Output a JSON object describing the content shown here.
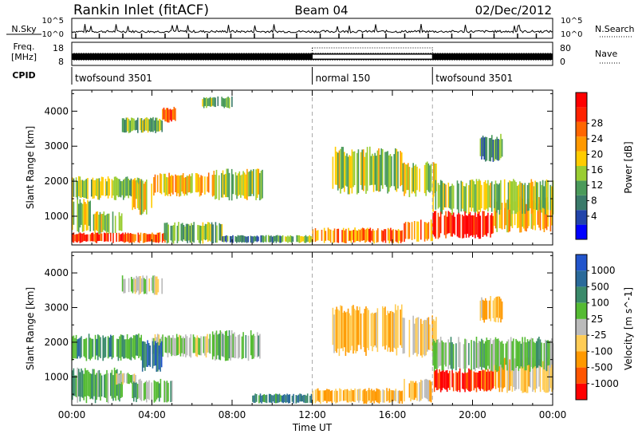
{
  "header": {
    "station": "Rankin Inlet (fitACF)",
    "beam": "Beam 04",
    "date": "02/Dec/2012"
  },
  "top_panels": {
    "nsky_label": "N.Sky",
    "nsky_ticks": [
      "10^5",
      "10^0"
    ],
    "nsearch_label": "N.Search",
    "nsearch_ticks": [
      "10^5",
      "10^0"
    ],
    "freq_label_1": "Freq.",
    "freq_label_2": "[MHz]",
    "freq_ticks": [
      "18",
      "8"
    ],
    "nave_label": "Nave",
    "nave_ticks": [
      "80",
      "0"
    ],
    "cpid_label": "CPID",
    "cpid_segments": [
      {
        "label": "twofsound 3501",
        "start_hour": 0,
        "end_hour": 12
      },
      {
        "label": "normal 150",
        "start_hour": 12,
        "end_hour": 18
      },
      {
        "label": "twofsound 3501",
        "start_hour": 18,
        "end_hour": 24
      }
    ]
  },
  "chart_data": [
    {
      "type": "heatmap",
      "title": "",
      "xlabel": "Time UT",
      "ylabel": "Slant Range [km]",
      "x_ticks": [
        "00:00",
        "04:00",
        "08:00",
        "12:00",
        "16:00",
        "20:00",
        "00:00"
      ],
      "xlim_hours": [
        0,
        24
      ],
      "y_ticks": [
        1000,
        2000,
        3000,
        4000
      ],
      "ylim": [
        180,
        4600
      ],
      "colorbar_label": "Power [dB]",
      "colorbar_ticks": [
        "4",
        "8",
        "12",
        "16",
        "20",
        "24",
        "28"
      ],
      "colorbar_colors": [
        "#0000ff",
        "#2244aa",
        "#3a7a6a",
        "#4a9a5a",
        "#9acd32",
        "#ffcc00",
        "#ff9900",
        "#ff6600",
        "#ff2200",
        "#ff0000"
      ],
      "blobs": [
        {
          "t": [
            0,
            2.2
          ],
          "r": [
            250,
            520
          ],
          "v": 26
        },
        {
          "t": [
            2.2,
            4.8
          ],
          "r": [
            250,
            520
          ],
          "v": 24
        },
        {
          "t": [
            0,
            1.0
          ],
          "r": [
            600,
            1500
          ],
          "v": 14
        },
        {
          "t": [
            0,
            3.5
          ],
          "r": [
            1500,
            2100
          ],
          "v": 13
        },
        {
          "t": [
            1.0,
            2.5
          ],
          "r": [
            500,
            1100
          ],
          "v": 15
        },
        {
          "t": [
            3.0,
            4.0
          ],
          "r": [
            1100,
            2000
          ],
          "v": 15
        },
        {
          "t": [
            4.0,
            7.0
          ],
          "r": [
            1600,
            2200
          ],
          "v": 19
        },
        {
          "t": [
            7.0,
            9.5
          ],
          "r": [
            1500,
            2300
          ],
          "v": 14
        },
        {
          "t": [
            4.6,
            7.5
          ],
          "r": [
            250,
            800
          ],
          "v": 11
        },
        {
          "t": [
            7.5,
            10.5
          ],
          "r": [
            250,
            450
          ],
          "v": 8
        },
        {
          "t": [
            10.5,
            12
          ],
          "r": [
            250,
            450
          ],
          "v": 13
        },
        {
          "t": [
            12,
            16.5
          ],
          "r": [
            250,
            650
          ],
          "v": 21
        },
        {
          "t": [
            16.5,
            18
          ],
          "r": [
            300,
            900
          ],
          "v": 20
        },
        {
          "t": [
            13,
            16.5
          ],
          "r": [
            1700,
            2900
          ],
          "v": 14
        },
        {
          "t": [
            16.5,
            18.2
          ],
          "r": [
            1600,
            2500
          ],
          "v": 14
        },
        {
          "t": [
            18,
            21
          ],
          "r": [
            400,
            1100
          ],
          "v": 28
        },
        {
          "t": [
            21,
            24
          ],
          "r": [
            600,
            1500
          ],
          "v": 19
        },
        {
          "t": [
            18,
            24
          ],
          "r": [
            1100,
            2000
          ],
          "v": 14
        },
        {
          "t": [
            4.5,
            5.2
          ],
          "r": [
            3700,
            4100
          ],
          "v": 23
        },
        {
          "t": [
            2.5,
            4.5
          ],
          "r": [
            3400,
            3800
          ],
          "v": 12
        },
        {
          "t": [
            6.5,
            8
          ],
          "r": [
            4100,
            4400
          ],
          "v": 12
        },
        {
          "t": [
            20.3,
            21.5
          ],
          "r": [
            2600,
            3300
          ],
          "v": 9
        }
      ]
    },
    {
      "type": "heatmap",
      "title": "",
      "xlabel": "Time UT",
      "ylabel": "Slant Range [km]",
      "x_ticks": [
        "00:00",
        "04:00",
        "08:00",
        "12:00",
        "16:00",
        "20:00",
        "00:00"
      ],
      "xlim_hours": [
        0,
        24
      ],
      "y_ticks": [
        1000,
        2000,
        3000,
        4000
      ],
      "ylim": [
        180,
        4600
      ],
      "colorbar_label": "Velocity [m s^-1]",
      "colorbar_ticks": [
        "1000",
        "500",
        "100",
        "25",
        "-25",
        "-100",
        "-500",
        "-1000"
      ],
      "colorbar_colors": [
        "#2255cc",
        "#2a6a9a",
        "#3a8a6a",
        "#55bb33",
        "#bbbbbb",
        "#ffcc55",
        "#ff9900",
        "#ff5500",
        "#ff0000"
      ],
      "blobs": [
        {
          "t": [
            0,
            3.5
          ],
          "r": [
            1500,
            2200
          ],
          "v": 400
        },
        {
          "t": [
            0,
            2.5
          ],
          "r": [
            300,
            1200
          ],
          "v": 300
        },
        {
          "t": [
            2.2,
            3.2
          ],
          "r": [
            800,
            1100
          ],
          "v": 0
        },
        {
          "t": [
            3.0,
            5.0
          ],
          "r": [
            300,
            900
          ],
          "v": 200
        },
        {
          "t": [
            4.0,
            7.0
          ],
          "r": [
            1600,
            2200
          ],
          "v": 80
        },
        {
          "t": [
            7.0,
            9.5
          ],
          "r": [
            1500,
            2300
          ],
          "v": 150
        },
        {
          "t": [
            3.5,
            4.5
          ],
          "r": [
            1200,
            2000
          ],
          "v": 600
        },
        {
          "t": [
            9.0,
            12
          ],
          "r": [
            250,
            500
          ],
          "v": 500
        },
        {
          "t": [
            12,
            16.5
          ],
          "r": [
            250,
            650
          ],
          "v": -300
        },
        {
          "t": [
            13,
            16.5
          ],
          "r": [
            1700,
            3000
          ],
          "v": -300
        },
        {
          "t": [
            16.5,
            18.2
          ],
          "r": [
            1600,
            2700
          ],
          "v": -200
        },
        {
          "t": [
            16.5,
            18
          ],
          "r": [
            300,
            900
          ],
          "v": -300
        },
        {
          "t": [
            18,
            21
          ],
          "r": [
            600,
            1200
          ],
          "v": -800
        },
        {
          "t": [
            21,
            24
          ],
          "r": [
            600,
            1500
          ],
          "v": -200
        },
        {
          "t": [
            18,
            24
          ],
          "r": [
            1200,
            2100
          ],
          "v": 200
        },
        {
          "t": [
            2.5,
            4.5
          ],
          "r": [
            3400,
            3900
          ],
          "v": 60
        },
        {
          "t": [
            20.3,
            21.5
          ],
          "r": [
            2600,
            3300
          ],
          "v": -300
        }
      ]
    }
  ],
  "colors": {
    "axis": "#000000",
    "dashed_marker": "#aaaaaa"
  },
  "footer": {
    "xlabel": "Time UT"
  }
}
